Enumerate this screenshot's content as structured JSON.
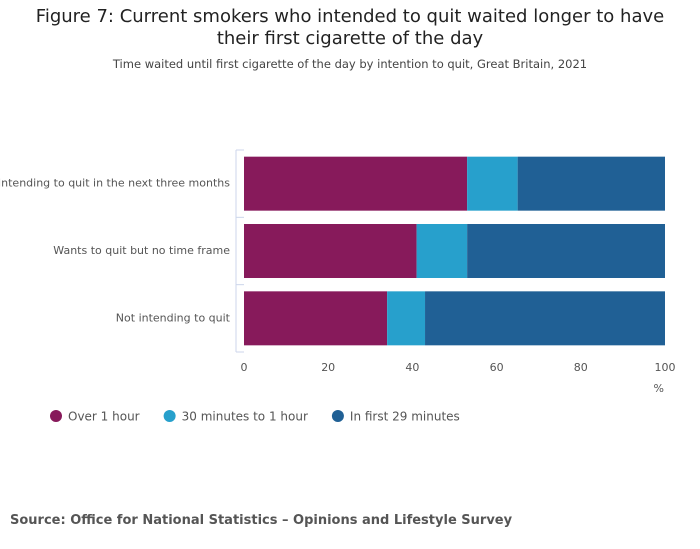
{
  "chart_data": {
    "type": "stacked_bar_horizontal",
    "title": "Figure 7: Current smokers who intended to quit waited longer to have their first cigarette of the day",
    "subtitle": "Time waited until first cigarette of the day by intention to quit, Great Britain, 2021",
    "categories": [
      "Intending to quit in the next three months",
      "Wants to quit but no time frame",
      "Not intending to quit"
    ],
    "series": [
      {
        "name": "Over 1 hour",
        "color": "#871a5b",
        "values": [
          53,
          41,
          34
        ]
      },
      {
        "name": "30 minutes to 1 hour",
        "color": "#27a0cc",
        "values": [
          12,
          12,
          9
        ]
      },
      {
        "name": "In first 29 minutes",
        "color": "#206095",
        "values": [
          35,
          47,
          57
        ]
      }
    ],
    "xlim": [
      0,
      100
    ],
    "xticks": [
      0,
      20,
      40,
      60,
      80,
      100
    ],
    "x_label": "%",
    "source": "Source: Office for National Statistics – Opinions and Lifestyle Survey"
  }
}
